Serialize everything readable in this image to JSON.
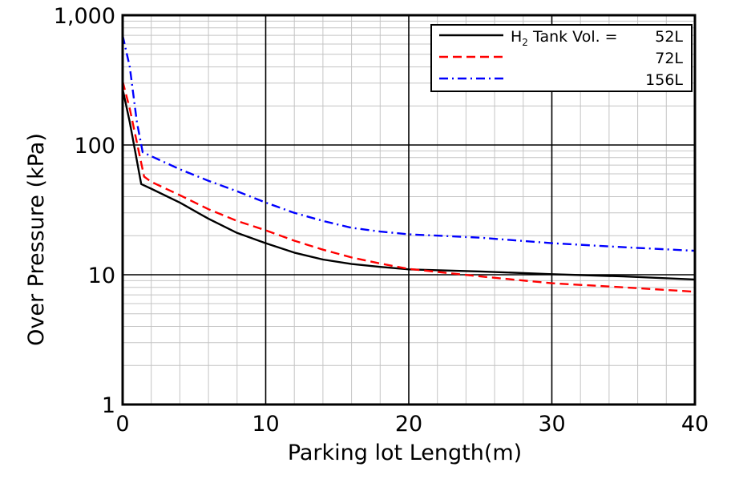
{
  "chart_data": {
    "type": "line",
    "title": "",
    "xlabel": "Parking lot Length(m)",
    "ylabel": "Over Pressure (kPa)",
    "xlim": [
      0,
      40
    ],
    "ylim": [
      1,
      1000
    ],
    "y_scale": "log",
    "grid": true,
    "x_ticks": [
      {
        "value": 0,
        "label": "0"
      },
      {
        "value": 10,
        "label": "10"
      },
      {
        "value": 20,
        "label": "20"
      },
      {
        "value": 30,
        "label": "30"
      },
      {
        "value": 40,
        "label": "40"
      }
    ],
    "y_ticks": [
      {
        "value": 1,
        "label": "1"
      },
      {
        "value": 10,
        "label": "10"
      },
      {
        "value": 100,
        "label": "100"
      },
      {
        "value": 1000,
        "label": "1,000"
      }
    ],
    "legend": {
      "placement": "top-right",
      "title_prefix": "H",
      "title_sub": "2",
      "title_suffix": " Tank Vol. ="
    },
    "series": [
      {
        "name": "52L",
        "color": "#000000",
        "style": "solid",
        "points": [
          [
            0,
            270
          ],
          [
            0.5,
            150
          ],
          [
            1.3,
            50
          ],
          [
            2,
            46
          ],
          [
            4,
            36
          ],
          [
            6,
            27
          ],
          [
            8,
            21
          ],
          [
            10,
            17.5
          ],
          [
            12,
            14.8
          ],
          [
            14,
            13.1
          ],
          [
            16,
            12.1
          ],
          [
            18,
            11.5
          ],
          [
            20,
            11.0
          ],
          [
            25,
            10.6
          ],
          [
            30,
            10.1
          ],
          [
            35,
            9.7
          ],
          [
            40,
            9.2
          ]
        ]
      },
      {
        "name": "72L",
        "color": "#ff0000",
        "style": "dashed",
        "points": [
          [
            0,
            310
          ],
          [
            0.5,
            190
          ],
          [
            1.5,
            57
          ],
          [
            2,
            52
          ],
          [
            4,
            41
          ],
          [
            6,
            32
          ],
          [
            8,
            26
          ],
          [
            10,
            22
          ],
          [
            12,
            18.3
          ],
          [
            14,
            15.6
          ],
          [
            16,
            13.6
          ],
          [
            18,
            12.2
          ],
          [
            20,
            11.1
          ],
          [
            25,
            9.7
          ],
          [
            30,
            8.6
          ],
          [
            35,
            8.0
          ],
          [
            40,
            7.4
          ]
        ]
      },
      {
        "name": "156L",
        "color": "#0000ff",
        "style": "dashdot",
        "points": [
          [
            0,
            700
          ],
          [
            0.5,
            400
          ],
          [
            1,
            150
          ],
          [
            1.4,
            88
          ],
          [
            2,
            82
          ],
          [
            4,
            65
          ],
          [
            6,
            53
          ],
          [
            8,
            44
          ],
          [
            10,
            36
          ],
          [
            12,
            30
          ],
          [
            14,
            26
          ],
          [
            16,
            23
          ],
          [
            18,
            21.5
          ],
          [
            20,
            20.5
          ],
          [
            25,
            19.3
          ],
          [
            30,
            17.5
          ],
          [
            35,
            16.3
          ],
          [
            40,
            15.3
          ]
        ]
      }
    ]
  }
}
